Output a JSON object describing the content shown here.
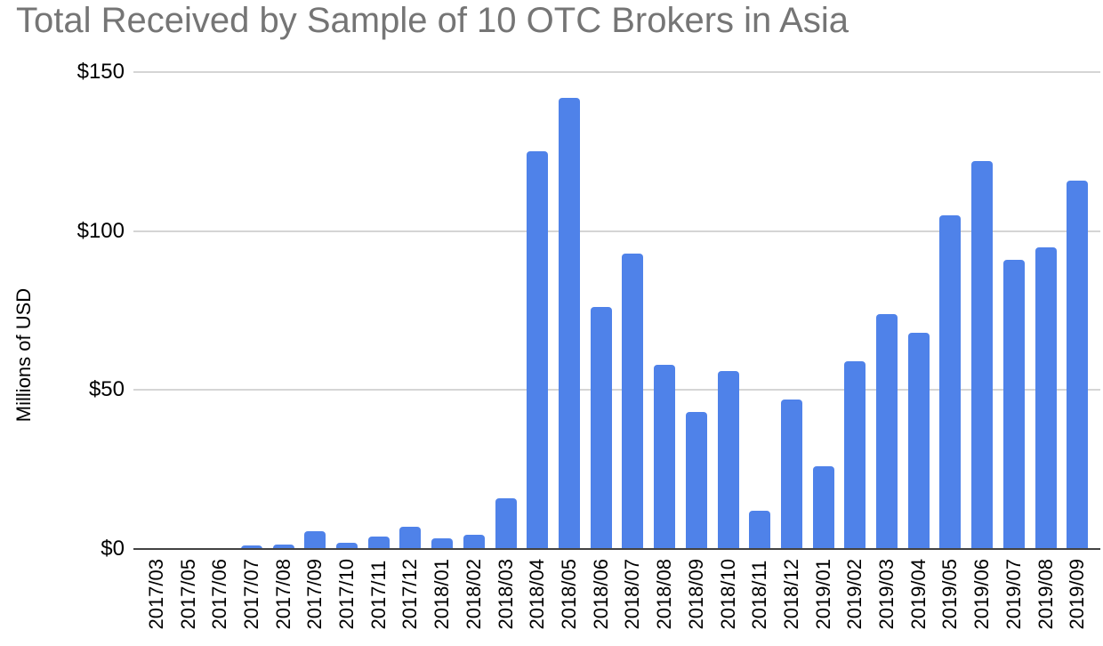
{
  "chart_data": {
    "type": "bar",
    "title": "Total Received by Sample of 10 OTC Brokers in Asia",
    "xlabel": "",
    "ylabel": "Millions of USD",
    "ylim": [
      0,
      150
    ],
    "yticks": [
      "$0",
      "$50",
      "$100",
      "$150"
    ],
    "ytick_values": [
      0,
      50,
      100,
      150
    ],
    "grid": true,
    "legend": "none",
    "bar_color": "#4f82e9",
    "title_color": "#757575",
    "categories": [
      "2017/03",
      "2017/05",
      "2017/06",
      "2017/07",
      "2017/08",
      "2017/09",
      "2017/10",
      "2017/11",
      "2017/12",
      "2018/01",
      "2018/02",
      "2018/03",
      "2018/04",
      "2018/05",
      "2018/06",
      "2018/07",
      "2018/08",
      "2018/09",
      "2018/10",
      "2018/11",
      "2018/12",
      "2019/01",
      "2019/02",
      "2019/03",
      "2019/04",
      "2019/05",
      "2019/06",
      "2019/07",
      "2019/08",
      "2019/09"
    ],
    "values": [
      0,
      0,
      0,
      1,
      1.5,
      5.5,
      2,
      4,
      7,
      3.5,
      4.5,
      16,
      125,
      142,
      76,
      93,
      58,
      43,
      56,
      12,
      47,
      26,
      59,
      74,
      68,
      105,
      122,
      91,
      95,
      116
    ]
  }
}
